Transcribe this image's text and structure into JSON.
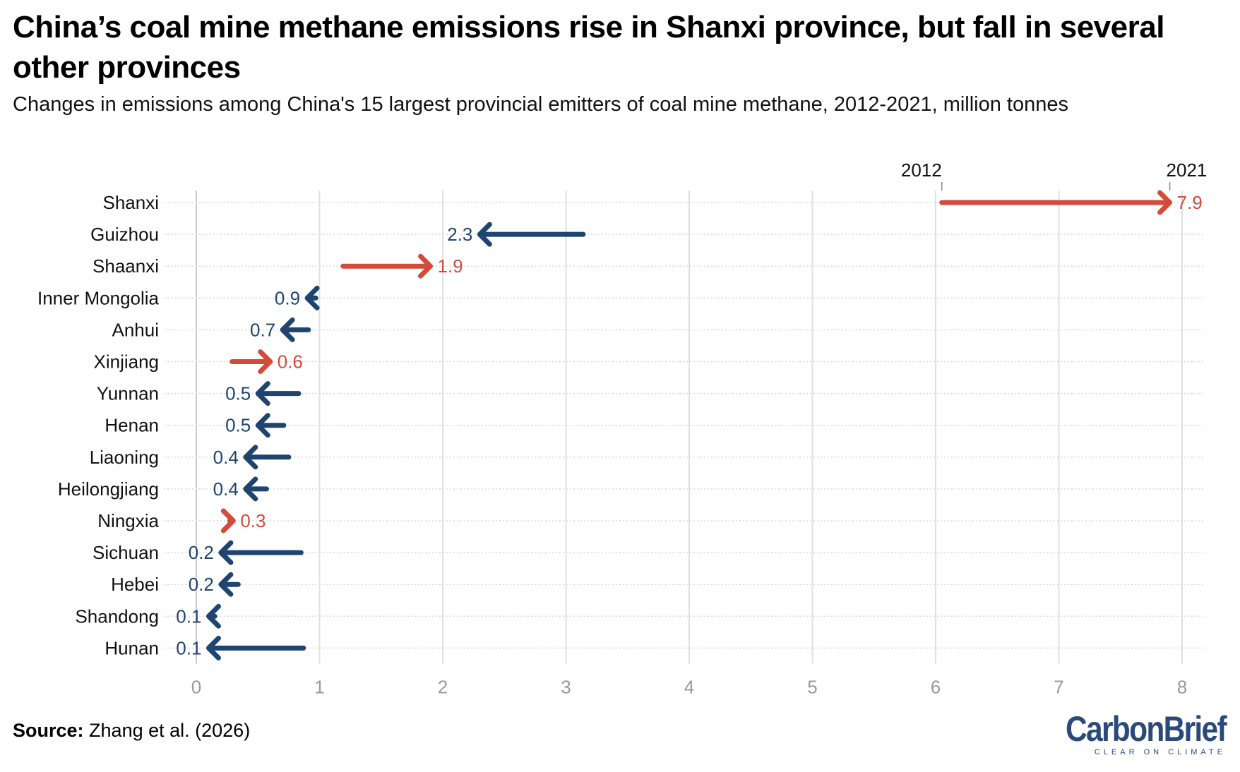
{
  "title": "China’s coal mine methane emissions rise in Shanxi province, but fall in several other provinces",
  "subtitle": "Changes in emissions among China's 15 largest provincial emitters of coal mine methane, 2012-2021, million tonnes",
  "source_label": "Source:",
  "source_text": "Zhang et al. (2026)",
  "logo": {
    "text": "CarbonBrief",
    "tagline": "CLEAR ON CLIMATE"
  },
  "colors": {
    "increase": "#d24c3c",
    "decrease": "#1f4470",
    "grid": "#e0e0e0",
    "tick": "#999999"
  },
  "chart_data": {
    "type": "arrow-dot",
    "title": "China’s coal mine methane emissions rise in Shanxi province, but fall in several other provinces",
    "xlim": [
      0,
      8
    ],
    "xticks": [
      "0",
      "1",
      "2",
      "3",
      "4",
      "5",
      "6",
      "7",
      "8"
    ],
    "legend": {
      "start_label": "2012",
      "end_label": "2021",
      "placement": "top-right"
    },
    "grid": true,
    "categories": [
      "Shanxi",
      "Guizhou",
      "Shaanxi",
      "Inner Mongolia",
      "Anhui",
      "Xinjiang",
      "Yunnan",
      "Henan",
      "Liaoning",
      "Heilongjiang",
      "Ningxia",
      "Sichuan",
      "Hebei",
      "Shandong",
      "Hunan"
    ],
    "values_2012": [
      6.05,
      3.14,
      1.19,
      0.97,
      0.91,
      0.29,
      0.83,
      0.71,
      0.75,
      0.57,
      0.27,
      0.85,
      0.34,
      0.15,
      0.87
    ],
    "values_2021": [
      7.9,
      2.3,
      1.9,
      0.9,
      0.7,
      0.6,
      0.5,
      0.5,
      0.4,
      0.4,
      0.3,
      0.2,
      0.2,
      0.1,
      0.1
    ],
    "labels_2021": [
      "7.9",
      "2.3",
      "1.9",
      "0.9",
      "0.7",
      "0.6",
      "0.5",
      "0.5",
      "0.4",
      "0.4",
      "0.3",
      "0.2",
      "0.2",
      "0.1",
      "0.1"
    ]
  }
}
